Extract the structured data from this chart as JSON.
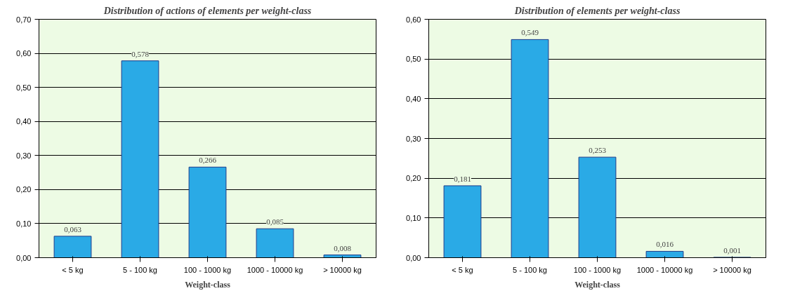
{
  "chart_data": [
    {
      "type": "bar",
      "title": "Distribution of actions of elements per weight-class",
      "xlabel": "Weight-class",
      "categories": [
        "< 5 kg",
        "5 - 100 kg",
        "100 - 1000 kg",
        "1000 - 10000 kg",
        "> 10000 kg"
      ],
      "values": [
        0.063,
        0.578,
        0.266,
        0.085,
        0.008
      ],
      "value_labels": [
        "0,063",
        "0,578",
        "0,266",
        "0,085",
        "0,008"
      ],
      "color": "#2aaae6",
      "ylim": [
        0,
        0.7
      ],
      "yticks": [
        {
          "value": 0,
          "label": "0,00"
        },
        {
          "value": 0.1,
          "label": "0,10"
        },
        {
          "value": 0.2,
          "label": "0,20"
        },
        {
          "value": 0.3,
          "label": "0,30"
        },
        {
          "value": 0.4,
          "label": "0,40"
        },
        {
          "value": 0.5,
          "label": "0,50"
        },
        {
          "value": 0.6,
          "label": "0,60"
        },
        {
          "value": 0.7,
          "label": "0,70"
        }
      ],
      "grid": "y"
    },
    {
      "type": "bar",
      "title": "Distribution of elements per weight-class",
      "xlabel": "Weight-class",
      "categories": [
        "< 5 kg",
        "5 - 100 kg",
        "100 - 1000 kg",
        "1000 - 10000 kg",
        "> 10000 kg"
      ],
      "values": [
        0.181,
        0.549,
        0.253,
        0.016,
        0.001
      ],
      "value_labels": [
        "0,181",
        "0,549",
        "0,253",
        "0,016",
        "0,001"
      ],
      "color": "#2aaae6",
      "ylim": [
        0,
        0.6
      ],
      "yticks": [
        {
          "value": 0,
          "label": "0,00"
        },
        {
          "value": 0.1,
          "label": "0,10"
        },
        {
          "value": 0.2,
          "label": "0,20"
        },
        {
          "value": 0.3,
          "label": "0,30"
        },
        {
          "value": 0.4,
          "label": "0,40"
        },
        {
          "value": 0.5,
          "label": "0,50"
        },
        {
          "value": 0.6,
          "label": "0,60"
        }
      ],
      "grid": "y"
    }
  ]
}
